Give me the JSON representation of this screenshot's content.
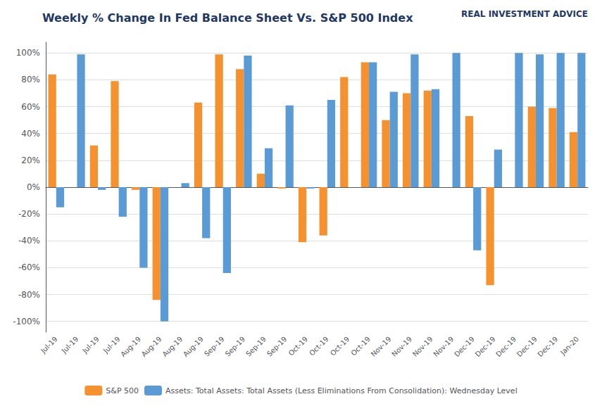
{
  "chart_data": {
    "type": "bar",
    "title": "Weekly % Change In Fed Balance Sheet Vs. S&P 500 Index",
    "annotations": [
      "REAL INVESTMENT ADVICE"
    ],
    "categories": [
      "Jul-19",
      "Jul-19",
      "Jul-19",
      "Jul-19",
      "Aug-19",
      "Aug-19",
      "Aug-19",
      "Aug-19",
      "Sep-19",
      "Sep-19",
      "Sep-19",
      "Sep-19",
      "Oct-19",
      "Oct-19",
      "Oct-19",
      "Oct-19",
      "Nov-19",
      "Nov-19",
      "Nov-19",
      "Nov-19",
      "Dec-19",
      "Dec-19",
      "Dec-19",
      "Dec-19",
      "Dec-19",
      "Jan-20"
    ],
    "series": [
      {
        "name": "S&P 500",
        "color": "#F5922F",
        "values": [
          0.84,
          0.0,
          0.31,
          0.79,
          -0.02,
          -0.84,
          0.0,
          0.63,
          0.99,
          0.88,
          0.1,
          -0.01,
          -0.41,
          -0.36,
          0.82,
          0.93,
          0.5,
          0.7,
          0.72,
          0.0,
          0.53,
          -0.73,
          0.0,
          0.6,
          0.59,
          0.41
        ]
      },
      {
        "name": "Assets: Total Assets: Total Assets (Less Eliminations From Consolidation): Wednesday Level",
        "color": "#5B9BD5",
        "values": [
          -0.15,
          0.99,
          -0.02,
          -0.22,
          -0.6,
          -1.0,
          0.03,
          -0.38,
          -0.64,
          0.98,
          0.29,
          0.61,
          -0.01,
          0.65,
          0.0,
          0.93,
          0.71,
          0.99,
          0.73,
          1.0,
          -0.47,
          0.28,
          1.0,
          0.99,
          1.0,
          1.0
        ]
      }
    ],
    "ylim": [
      -1.08,
      1.08
    ],
    "yticks": [
      {
        "value": -1.0,
        "label": "-100%"
      },
      {
        "value": -0.8,
        "label": "-80%"
      },
      {
        "value": -0.6,
        "label": "-60%"
      },
      {
        "value": -0.4,
        "label": "-40%"
      },
      {
        "value": -0.2,
        "label": "-20%"
      },
      {
        "value": 0.0,
        "label": "0%"
      },
      {
        "value": 0.2,
        "label": "20%"
      },
      {
        "value": 0.4,
        "label": "40%"
      },
      {
        "value": 0.6,
        "label": "60%"
      },
      {
        "value": 0.8,
        "label": "80%"
      },
      {
        "value": 1.0,
        "label": "100%"
      }
    ],
    "grid": true,
    "legend": "bottom"
  }
}
